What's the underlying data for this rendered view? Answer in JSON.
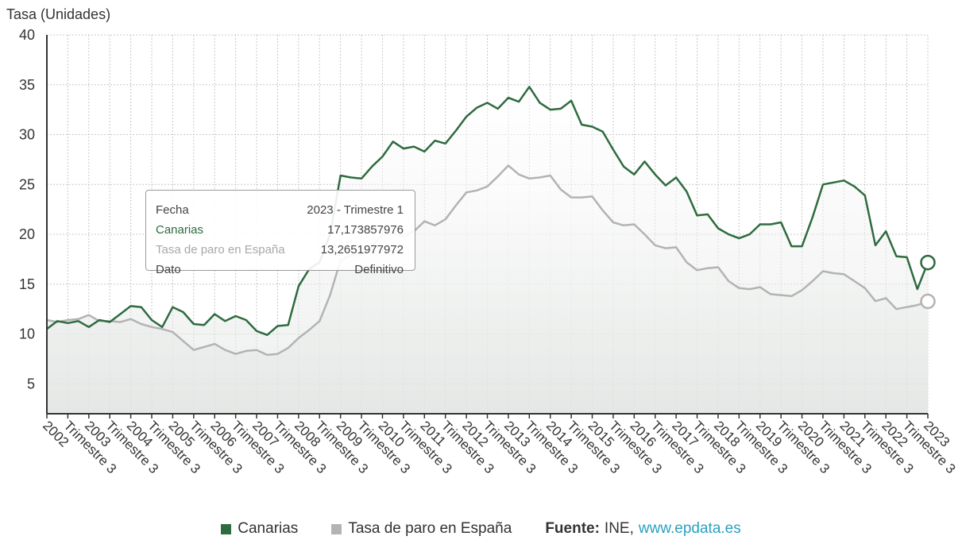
{
  "chart_data": {
    "type": "area",
    "ylabel": "Tasa (Unidades)",
    "ylim": [
      2,
      40
    ],
    "yticks": [
      5,
      10,
      15,
      20,
      25,
      30,
      35,
      40
    ],
    "grid": true,
    "x_tick_labels": [
      "2002",
      "Trimestre 3",
      "2003",
      "Trimestre 3",
      "2004",
      "Trimestre 3",
      "2005",
      "Trimestre 3",
      "2006",
      "Trimestre 3",
      "2007",
      "Trimestre 3",
      "2008",
      "Trimestre 3",
      "2009",
      "Trimestre 3",
      "2010",
      "Trimestre 3",
      "2011",
      "Trimestre 3",
      "2012",
      "Trimestre 3",
      "2013",
      "Trimestre 3",
      "2014",
      "Trimestre 3",
      "2015",
      "Trimestre 3",
      "2016",
      "Trimestre 3",
      "2017",
      "Trimestre 3",
      "2018",
      "Trimestre 3",
      "2019",
      "Trimestre 3",
      "2020",
      "Trimestre 3",
      "2021",
      "Trimestre 3",
      "2022",
      "Trimestre 3",
      "2023"
    ],
    "x": [
      "2002 T1",
      "2002 T2",
      "2002 T3",
      "2002 T4",
      "2003 T1",
      "2003 T2",
      "2003 T3",
      "2003 T4",
      "2004 T1",
      "2004 T2",
      "2004 T3",
      "2004 T4",
      "2005 T1",
      "2005 T2",
      "2005 T3",
      "2005 T4",
      "2006 T1",
      "2006 T2",
      "2006 T3",
      "2006 T4",
      "2007 T1",
      "2007 T2",
      "2007 T3",
      "2007 T4",
      "2008 T1",
      "2008 T2",
      "2008 T3",
      "2008 T4",
      "2009 T1",
      "2009 T2",
      "2009 T3",
      "2009 T4",
      "2010 T1",
      "2010 T2",
      "2010 T3",
      "2010 T4",
      "2011 T1",
      "2011 T2",
      "2011 T3",
      "2011 T4",
      "2012 T1",
      "2012 T2",
      "2012 T3",
      "2012 T4",
      "2013 T1",
      "2013 T2",
      "2013 T3",
      "2013 T4",
      "2014 T1",
      "2014 T2",
      "2014 T3",
      "2014 T4",
      "2015 T1",
      "2015 T2",
      "2015 T3",
      "2015 T4",
      "2016 T1",
      "2016 T2",
      "2016 T3",
      "2016 T4",
      "2017 T1",
      "2017 T2",
      "2017 T3",
      "2017 T4",
      "2018 T1",
      "2018 T2",
      "2018 T3",
      "2018 T4",
      "2019 T1",
      "2019 T2",
      "2019 T3",
      "2019 T4",
      "2020 T1",
      "2020 T2",
      "2020 T3",
      "2020 T4",
      "2021 T1",
      "2021 T2",
      "2021 T3",
      "2021 T4",
      "2022 T1",
      "2022 T2",
      "2022 T3",
      "2022 T4",
      "2023 T1"
    ],
    "series": [
      {
        "name": "Canarias",
        "color": "#2e6b3f",
        "values": [
          10.5,
          11.3,
          11.1,
          11.3,
          10.7,
          11.4,
          11.2,
          12.0,
          12.8,
          12.7,
          11.4,
          10.7,
          12.7,
          12.2,
          11.0,
          10.9,
          12.0,
          11.3,
          11.8,
          11.4,
          10.3,
          9.9,
          10.8,
          10.9,
          14.8,
          16.5,
          17.2,
          20.0,
          25.9,
          25.7,
          25.6,
          26.8,
          27.8,
          29.3,
          28.6,
          28.8,
          28.3,
          29.4,
          29.1,
          30.4,
          31.8,
          32.7,
          33.2,
          32.6,
          33.7,
          33.3,
          34.8,
          33.2,
          32.5,
          32.6,
          33.4,
          31.0,
          30.8,
          30.3,
          28.5,
          26.8,
          26.0,
          27.3,
          26.0,
          24.9,
          25.7,
          24.3,
          21.9,
          22.0,
          20.6,
          20.0,
          19.6,
          20.0,
          21.0,
          21.0,
          21.2,
          18.8,
          18.8,
          21.7,
          25.0,
          25.2,
          25.4,
          24.8,
          23.9,
          18.9,
          20.3,
          17.8,
          17.7,
          14.5,
          17.17
        ]
      },
      {
        "name": "Tasa de paro en España",
        "color": "#b3b3b3",
        "values": [
          11.4,
          11.2,
          11.4,
          11.5,
          11.9,
          11.3,
          11.3,
          11.2,
          11.5,
          11.0,
          10.7,
          10.5,
          10.2,
          9.3,
          8.4,
          8.7,
          9.0,
          8.4,
          8.0,
          8.3,
          8.4,
          7.9,
          8.0,
          8.6,
          9.6,
          10.4,
          11.3,
          13.9,
          17.4,
          17.9,
          17.9,
          18.8,
          20.0,
          20.1,
          19.8,
          20.3,
          21.3,
          20.9,
          21.5,
          22.9,
          24.2,
          24.4,
          24.8,
          25.8,
          26.9,
          26.0,
          25.6,
          25.7,
          25.9,
          24.5,
          23.7,
          23.7,
          23.8,
          22.4,
          21.2,
          20.9,
          21.0,
          20.0,
          18.9,
          18.6,
          18.7,
          17.2,
          16.4,
          16.6,
          16.7,
          15.3,
          14.6,
          14.5,
          14.7,
          14.0,
          13.9,
          13.8,
          14.4,
          15.3,
          16.3,
          16.1,
          16.0,
          15.3,
          14.6,
          13.3,
          13.6,
          12.5,
          12.7,
          12.9,
          13.27
        ]
      }
    ]
  },
  "tooltip": {
    "rows": [
      {
        "label": "Fecha",
        "value": "2023 - Trimestre 1",
        "color": "#444444"
      },
      {
        "label": "Canarias",
        "value": "17,173857976",
        "color": "#2e6b3f"
      },
      {
        "label": "Tasa de paro en España",
        "value": "13,2651977972",
        "color": "#a8a8a8"
      },
      {
        "label": "Dato",
        "value": "Definitivo",
        "color": "#444444"
      }
    ]
  },
  "legend": {
    "items": [
      {
        "label": "Canarias",
        "color": "#2e6b3f"
      },
      {
        "label": "Tasa de paro en España",
        "color": "#b3b3b3"
      }
    ],
    "source_label": "Fuente:",
    "source_name": "INE,",
    "source_link": "www.epdata.es"
  }
}
